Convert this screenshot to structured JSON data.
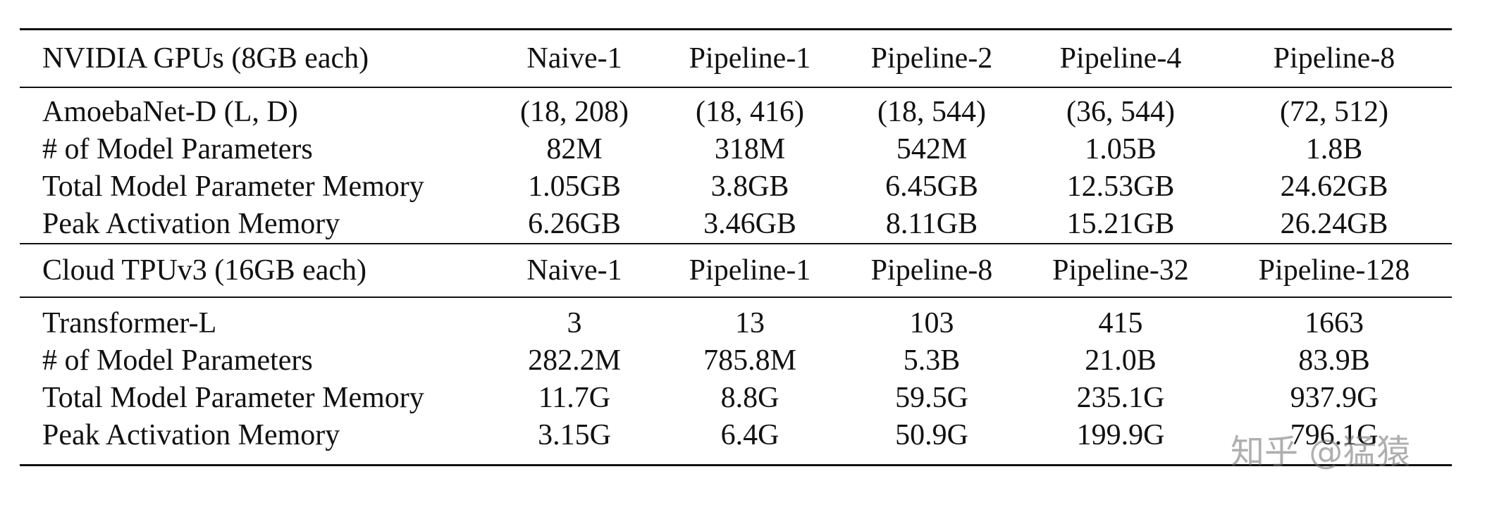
{
  "table": {
    "section1": {
      "header": [
        "NVIDIA GPUs (8GB each)",
        "Naive-1",
        "Pipeline-1",
        "Pipeline-2",
        "Pipeline-4",
        "Pipeline-8"
      ],
      "rows": [
        [
          "AmoebaNet-D (L, D)",
          "(18, 208)",
          "(18, 416)",
          "(18, 544)",
          "(36, 544)",
          "(72, 512)"
        ],
        [
          "# of Model Parameters",
          "82M",
          "318M",
          "542M",
          "1.05B",
          "1.8B"
        ],
        [
          "Total Model Parameter Memory",
          "1.05GB",
          "3.8GB",
          "6.45GB",
          "12.53GB",
          "24.62GB"
        ],
        [
          "Peak Activation Memory",
          "6.26GB",
          "3.46GB",
          "8.11GB",
          "15.21GB",
          "26.24GB"
        ]
      ]
    },
    "section2": {
      "header": [
        "Cloud TPUv3 (16GB each)",
        "Naive-1",
        "Pipeline-1",
        "Pipeline-8",
        "Pipeline-32",
        "Pipeline-128"
      ],
      "rows": [
        [
          "Transformer-L",
          "3",
          "13",
          "103",
          "415",
          "1663"
        ],
        [
          "# of Model Parameters",
          "282.2M",
          "785.8M",
          "5.3B",
          "21.0B",
          "83.9B"
        ],
        [
          "Total Model Parameter Memory",
          "11.7G",
          "8.8G",
          "59.5G",
          "235.1G",
          "937.9G"
        ],
        [
          "Peak Activation Memory",
          "3.15G",
          "6.4G",
          "50.9G",
          "199.9G",
          "796.1G"
        ]
      ]
    }
  },
  "watermark": "知乎 @猛猿"
}
